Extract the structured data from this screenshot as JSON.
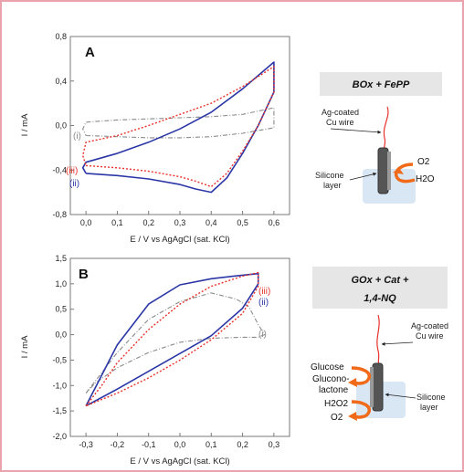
{
  "colors": {
    "frame_border": "#e9a3ad",
    "plot_frame": "#7a7a7a",
    "curve_i": "#8a8a8a",
    "curve_ii": "#2b36a6",
    "curve_iii": "#e8322b",
    "label_iii": "#e8322b",
    "label_ii": "#2b36a6",
    "label_i": "#8a8a8a",
    "box_fill": "#e6e6e6",
    "wire": "#e8322b",
    "arrow": "#f06a1a",
    "solution": "#cfe1f3"
  },
  "chart_data": [
    {
      "type": "line",
      "panel_label": "A",
      "xlabel": "E / V vs AgAgCl (sat. KCl)",
      "ylabel": "I / mA",
      "xlim": [
        -0.05,
        0.65
      ],
      "ylim": [
        -0.8,
        0.8
      ],
      "xticks": [
        "0,0",
        "0,1",
        "0,2",
        "0,3",
        "0,4",
        "0,5",
        "0,6"
      ],
      "yticks": [
        "-0,8",
        "-0,4",
        "0,0",
        "0,4",
        "0,8"
      ],
      "series": [
        {
          "name": "(i)",
          "x": [
            0.0,
            0.1,
            0.2,
            0.3,
            0.4,
            0.5,
            0.6,
            0.6,
            0.5,
            0.4,
            0.3,
            0.2,
            0.1,
            0.0,
            -0.01,
            0.0
          ],
          "y": [
            -0.09,
            -0.1,
            -0.11,
            -0.11,
            -0.1,
            -0.07,
            -0.02,
            0.16,
            0.1,
            0.08,
            0.07,
            0.06,
            0.05,
            0.03,
            -0.03,
            -0.09
          ]
        },
        {
          "name": "(ii)",
          "x": [
            0.0,
            0.1,
            0.2,
            0.3,
            0.35,
            0.4,
            0.45,
            0.5,
            0.55,
            0.6,
            0.6,
            0.5,
            0.4,
            0.3,
            0.2,
            0.1,
            0.0,
            -0.01,
            0.0
          ],
          "y": [
            -0.43,
            -0.45,
            -0.48,
            -0.53,
            -0.57,
            -0.6,
            -0.47,
            -0.25,
            0.0,
            0.3,
            0.57,
            0.33,
            0.12,
            -0.03,
            -0.15,
            -0.25,
            -0.33,
            -0.38,
            -0.43
          ]
        },
        {
          "name": "(iii)",
          "x": [
            0.0,
            0.1,
            0.2,
            0.3,
            0.35,
            0.4,
            0.45,
            0.5,
            0.55,
            0.6,
            0.6,
            0.5,
            0.4,
            0.3,
            0.2,
            0.1,
            0.0,
            -0.01,
            0.0
          ],
          "y": [
            -0.36,
            -0.38,
            -0.41,
            -0.46,
            -0.5,
            -0.55,
            -0.43,
            -0.23,
            0.0,
            0.3,
            0.53,
            0.35,
            0.2,
            0.1,
            0.0,
            -0.09,
            -0.15,
            -0.27,
            -0.36
          ]
        }
      ],
      "annotations": [
        "(i)",
        "(iii)",
        "(ii)"
      ]
    },
    {
      "type": "line",
      "panel_label": "B",
      "xlabel": "E / V vs AgAgCl (sat. KCl)",
      "ylabel": "I / mA",
      "xlim": [
        -0.35,
        0.35
      ],
      "ylim": [
        -2.0,
        1.5
      ],
      "xticks": [
        "-0,3",
        "-0,2",
        "-0,1",
        "0,0",
        "0,1",
        "0,2",
        "0,3"
      ],
      "yticks": [
        "-2,0",
        "-1,5",
        "-1,0",
        "-0,5",
        "0,0",
        "0,5",
        "1,0",
        "1,5"
      ],
      "series": [
        {
          "name": "(i)",
          "x": [
            -0.3,
            -0.25,
            -0.2,
            -0.1,
            0.0,
            0.1,
            0.18,
            0.22,
            0.25,
            0.27,
            0.25,
            0.2,
            0.1,
            0.0,
            -0.1,
            -0.2,
            -0.27,
            -0.3
          ],
          "y": [
            -1.15,
            -0.75,
            -0.35,
            0.3,
            0.65,
            0.82,
            0.7,
            0.55,
            0.2,
            0.0,
            -0.05,
            -0.05,
            -0.07,
            -0.15,
            -0.35,
            -0.65,
            -0.95,
            -1.15
          ]
        },
        {
          "name": "(ii)",
          "x": [
            -0.3,
            -0.25,
            -0.2,
            -0.1,
            0.0,
            0.1,
            0.2,
            0.25,
            0.25,
            0.2,
            0.1,
            0.0,
            -0.1,
            -0.2,
            -0.3
          ],
          "y": [
            -1.4,
            -0.8,
            -0.2,
            0.6,
            0.98,
            1.1,
            1.17,
            1.2,
            1.0,
            0.52,
            -0.02,
            -0.37,
            -0.72,
            -1.07,
            -1.4
          ]
        },
        {
          "name": "(iii)",
          "x": [
            -0.3,
            -0.25,
            -0.2,
            -0.1,
            0.0,
            0.1,
            0.2,
            0.25,
            0.25,
            0.2,
            0.1,
            0.0,
            -0.1,
            -0.2,
            -0.3
          ],
          "y": [
            -1.4,
            -1.0,
            -0.55,
            0.1,
            0.6,
            0.95,
            1.15,
            1.22,
            0.95,
            0.42,
            -0.1,
            -0.5,
            -0.85,
            -1.15,
            -1.4
          ]
        }
      ],
      "annotations": [
        "(iii)",
        "(ii)",
        "(i)"
      ]
    }
  ],
  "schemes": {
    "a": {
      "title": "BOx + FePP",
      "wire_label": [
        "Ag-coated",
        "Cu wire"
      ],
      "layer_label": [
        "Silicone",
        "layer"
      ],
      "reaction": [
        "O2",
        "H2O"
      ]
    },
    "b": {
      "title": [
        "GOx + Cat +",
        "1,4-NQ"
      ],
      "wire_label": [
        "Ag-coated",
        "Cu wire"
      ],
      "layer_label": [
        "Silicone",
        "layer"
      ],
      "reaction1": [
        "Glucose",
        "Glucono-",
        "lactone"
      ],
      "reaction2": [
        "H2O2",
        "O2"
      ]
    }
  }
}
